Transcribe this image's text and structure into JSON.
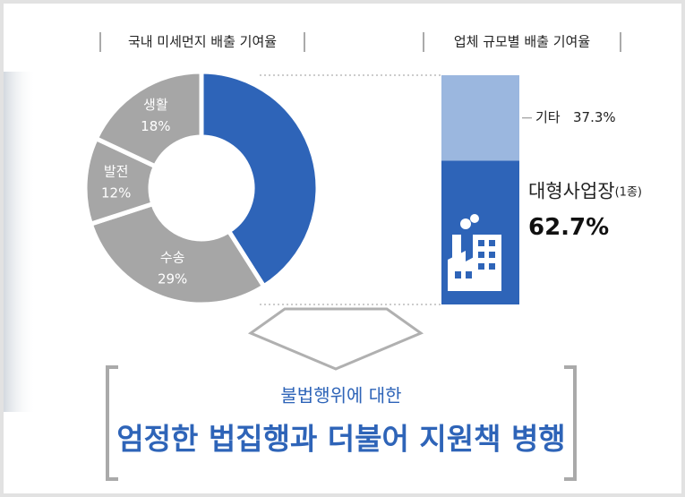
{
  "chart_data": [
    {
      "type": "pie",
      "title": "국내 미세먼지 배출 기여율",
      "categories": [
        null,
        "수송",
        "발전",
        "생활"
      ],
      "values": [
        41,
        29,
        12,
        18
      ],
      "value_labels": [
        null,
        "29%",
        "12%",
        "18%"
      ],
      "colors": [
        "#2e64b8",
        "#a6a6a6",
        "#a6a6a6",
        "#a6a6a6"
      ]
    },
    {
      "type": "stacked-bar",
      "title": "업체 규모별 배출 기여율",
      "ylim": [
        0,
        100
      ],
      "series": [
        {
          "name": "대형사업장",
          "note": "(1종)",
          "color": "#2e64b8",
          "values": [
            62.7
          ],
          "value_labels": [
            "62.7%"
          ]
        },
        {
          "name": "기타",
          "color": "#9bb7df",
          "values": [
            37.3
          ],
          "value_labels": [
            "37.3%"
          ]
        }
      ]
    }
  ],
  "banner": {
    "line1": "불법행위에 대한",
    "line2": "엄정한 법집행과 더불어 지원책 병행"
  }
}
